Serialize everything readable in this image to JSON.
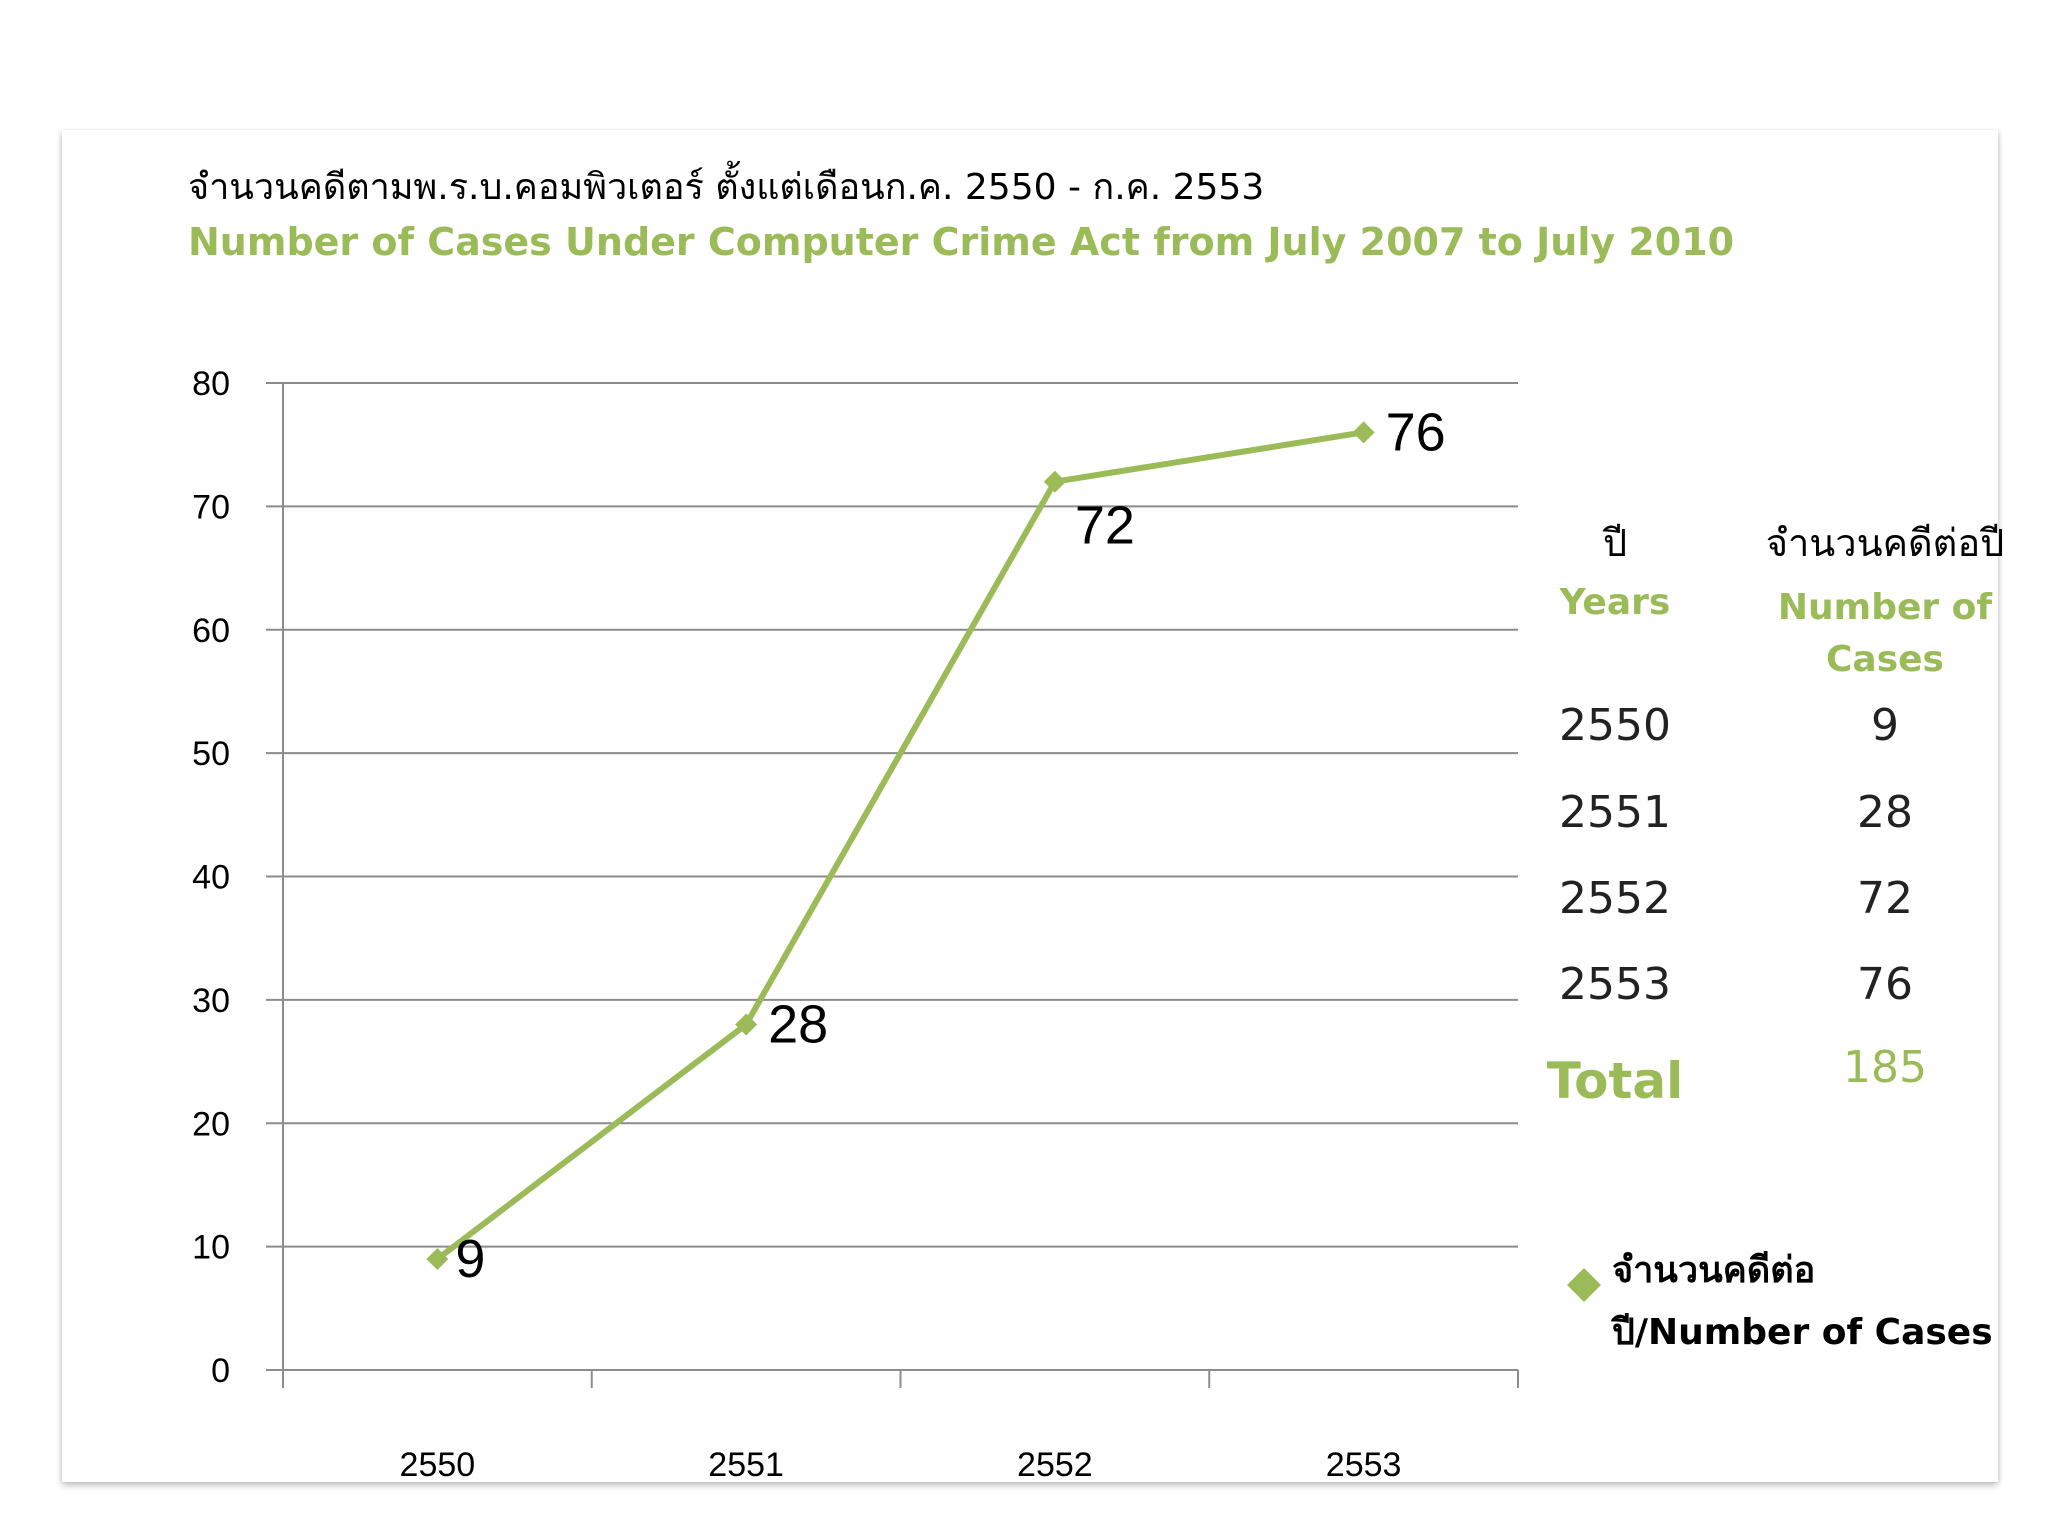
{
  "title_th": "จำนวนคดีตามพ.ร.บ.คอมพิวเตอร์ ตั้งแต่เดือนก.ค. 2550 - ก.ค. 2553",
  "title_en": "Number of Cases Under Computer Crime Act from July 2007 to July 2010",
  "chart_data": {
    "type": "line",
    "title": "Number of Cases Under Computer Crime Act from July 2007 to July 2010",
    "categories": [
      "2550",
      "2551",
      "2552",
      "2553"
    ],
    "series": [
      {
        "name": "จำนวนคดีต่อปี/Number of Cases",
        "values": [
          9,
          28,
          72,
          76
        ],
        "labels": [
          "9",
          "28",
          "72",
          "76"
        ]
      }
    ],
    "ylim": [
      0,
      80
    ],
    "yticks": [
      "0",
      "10",
      "20",
      "30",
      "40",
      "50",
      "60",
      "70",
      "80"
    ],
    "xlabel": "",
    "ylabel": "",
    "grid": true,
    "legend": "right",
    "color": "#9bbb59"
  },
  "table": {
    "header_years_th": "ปี",
    "header_years_en": "Years",
    "header_cases_th": "จำนวนคดีต่อปี",
    "header_cases_en": "Number of Cases",
    "rows": [
      {
        "year": "2550",
        "cases": "9"
      },
      {
        "year": "2551",
        "cases": "28"
      },
      {
        "year": "2552",
        "cases": "72"
      },
      {
        "year": "2553",
        "cases": "76"
      }
    ],
    "total_label": "Total",
    "total_value": "185"
  },
  "legend": {
    "label": "จำนวนคดีต่อปี/Number of Cases",
    "icon": "diamond-marker-icon"
  }
}
